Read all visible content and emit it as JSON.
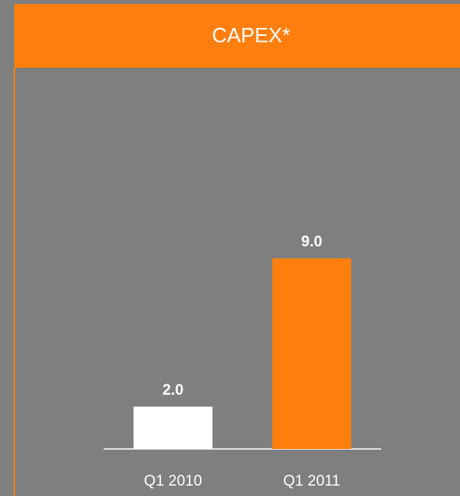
{
  "chart_data": {
    "type": "bar",
    "title": "CAPEX*",
    "categories": [
      "Q1 2010",
      "Q1 2011"
    ],
    "values": [
      2,
      9
    ],
    "value_labels": [
      "2.0",
      "9.0"
    ],
    "colors": [
      "#ffffff",
      "#ff7f0e"
    ]
  }
}
